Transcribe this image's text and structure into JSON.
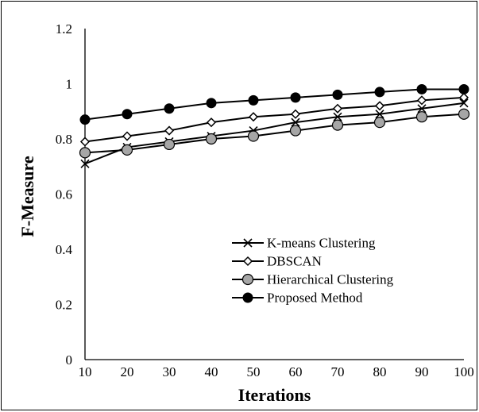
{
  "chart_data": {
    "type": "line",
    "title": "",
    "xlabel": "Iterations",
    "ylabel": "F-Measure",
    "x": [
      10,
      20,
      30,
      40,
      50,
      60,
      70,
      80,
      90,
      100
    ],
    "xlim": [
      10,
      100
    ],
    "ylim": [
      0,
      1.2
    ],
    "yticks": [
      "0",
      "0.2",
      "0.4",
      "0.6",
      "0.8",
      "1",
      "1.2"
    ],
    "xticks": [
      "10",
      "20",
      "30",
      "40",
      "50",
      "60",
      "70",
      "80",
      "90",
      "100"
    ],
    "grid": false,
    "legend_position": "bottom-right",
    "series": [
      {
        "name": "K-means Clustering",
        "marker": "cross",
        "values": [
          0.71,
          0.77,
          0.79,
          0.81,
          0.83,
          0.86,
          0.88,
          0.89,
          0.91,
          0.93
        ]
      },
      {
        "name": "DBSCAN",
        "marker": "diamond-open",
        "values": [
          0.79,
          0.81,
          0.83,
          0.86,
          0.88,
          0.89,
          0.91,
          0.92,
          0.94,
          0.95
        ]
      },
      {
        "name": "Hierarchical Clustering",
        "marker": "circle-gray",
        "values": [
          0.75,
          0.76,
          0.78,
          0.8,
          0.81,
          0.83,
          0.85,
          0.86,
          0.88,
          0.89
        ]
      },
      {
        "name": "Proposed Method",
        "marker": "circle-black",
        "values": [
          0.87,
          0.89,
          0.91,
          0.93,
          0.94,
          0.95,
          0.96,
          0.97,
          0.98,
          0.98
        ]
      }
    ],
    "colors": {
      "line": "#000000",
      "hier_fill": "#a6a6a6",
      "open_fill": "#ffffff"
    }
  }
}
